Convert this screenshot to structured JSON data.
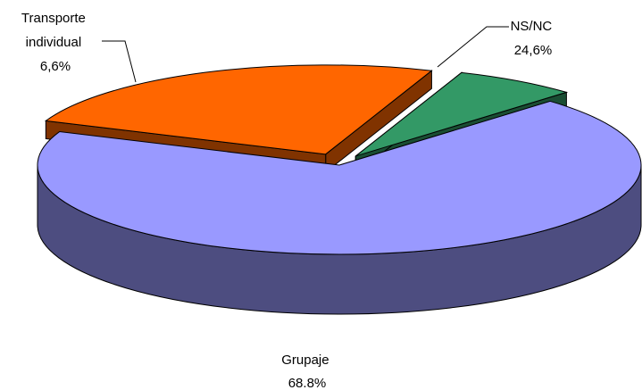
{
  "chart_data": {
    "type": "pie",
    "style": "3d-exploded",
    "slices": [
      {
        "label_lines": [
          "Grupaje",
          "68.8%"
        ],
        "category": "Grupaje",
        "value": 68.8,
        "value_label": "68.8%",
        "top_color": "#9999FF",
        "side_color": "#4D4D80"
      },
      {
        "label_lines": [
          "Transporte",
          "individual",
          "6,6%"
        ],
        "category": "Transporte individual",
        "value": 6.6,
        "value_label": "6,6%",
        "top_color": "#339966",
        "side_color": "#1A4D33"
      },
      {
        "label_lines": [
          "NS/NC",
          "24,6%"
        ],
        "category": "NS/NC",
        "value": 24.6,
        "value_label": "24,6%",
        "top_color": "#FF6600",
        "side_color": "#803300"
      }
    ]
  }
}
